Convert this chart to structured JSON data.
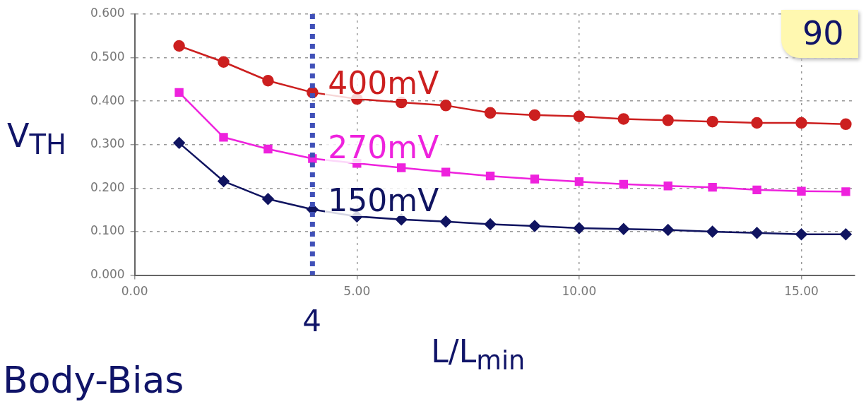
{
  "chart_data": {
    "type": "line",
    "xlabel": "L/L$_{min}$",
    "ylabel": "V$_{TH}$",
    "x": [
      1,
      2,
      3,
      4,
      5,
      6,
      7,
      8,
      9,
      10,
      11,
      12,
      13,
      14,
      15,
      16
    ],
    "series": [
      {
        "name": "400mV",
        "color": "#cc1f1f",
        "marker": "circle",
        "values": [
          0.527,
          0.49,
          0.447,
          0.42,
          0.405,
          0.397,
          0.39,
          0.373,
          0.368,
          0.365,
          0.359,
          0.356,
          0.353,
          0.35,
          0.35,
          0.347
        ]
      },
      {
        "name": "270mV",
        "color": "#ee22dd",
        "marker": "square",
        "values": [
          0.42,
          0.317,
          0.29,
          0.268,
          0.257,
          0.247,
          0.237,
          0.228,
          0.221,
          0.215,
          0.209,
          0.205,
          0.202,
          0.196,
          0.193,
          0.192
        ]
      },
      {
        "name": "150mV",
        "color": "#101460",
        "marker": "diamond",
        "values": [
          0.304,
          0.216,
          0.175,
          0.151,
          0.135,
          0.128,
          0.123,
          0.117,
          0.113,
          0.108,
          0.106,
          0.104,
          0.1,
          0.097,
          0.094,
          0.094
        ]
      }
    ],
    "xlim": [
      0,
      16.2
    ],
    "xticks": [
      {
        "value": 0,
        "label": "0.00"
      },
      {
        "value": 5,
        "label": "5.00"
      },
      {
        "value": 10,
        "label": "10.00"
      },
      {
        "value": 15,
        "label": "15.00"
      }
    ],
    "ylim": [
      0,
      0.6
    ],
    "yticks": [
      {
        "value": 0,
        "label": "0.000"
      },
      {
        "value": 0.1,
        "label": "0.100"
      },
      {
        "value": 0.2,
        "label": "0.200"
      },
      {
        "value": 0.3,
        "label": "0.300"
      },
      {
        "value": 0.4,
        "label": "0.400"
      },
      {
        "value": 0.5,
        "label": "0.500"
      },
      {
        "value": 0.6,
        "label": "0.600"
      }
    ],
    "grid": true,
    "legend": false,
    "line_style": "solid",
    "ref_lines": [
      {
        "axis": "x",
        "value": 4,
        "label": "4",
        "color": "#4050b8",
        "line_style": "dotted"
      }
    ],
    "annotations": [
      "Body-Bias",
      "90"
    ]
  }
}
